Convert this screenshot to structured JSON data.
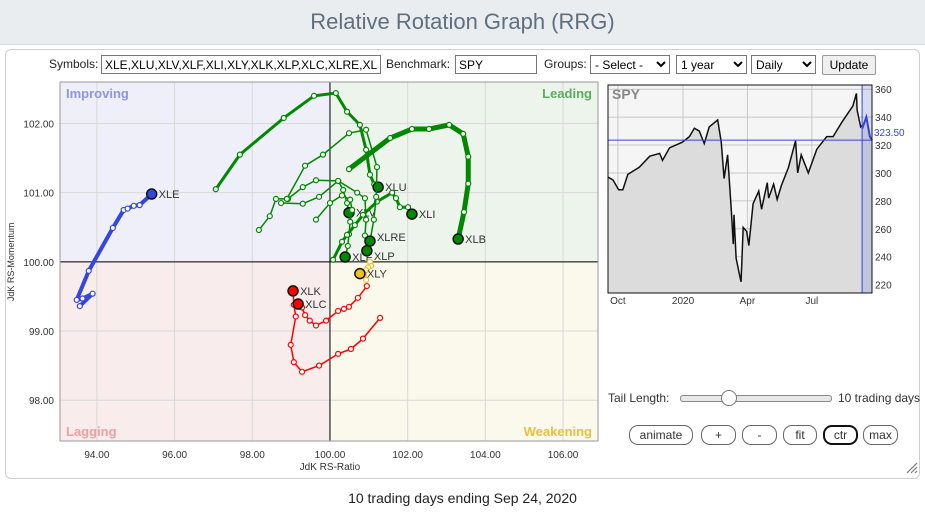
{
  "header": {
    "title": "Relative Rotation Graph (RRG)"
  },
  "toolbar": {
    "symbols_label": "Symbols:",
    "symbols_value": "XLE,XLU,XLV,XLF,XLI,XLY,XLK,XLP,XLC,XLRE,XLB",
    "benchmark_label": "Benchmark:",
    "benchmark_value": "SPY",
    "groups_label": "Groups:",
    "groups_value": "- Select -",
    "period_value": "1 year",
    "frequency_value": "Daily",
    "update_label": "Update"
  },
  "controls": {
    "tail_label": "Tail Length:",
    "tail_value_text": "10 trading days",
    "tail_days": 10,
    "buttons": [
      "animate",
      "+",
      "-",
      "fit",
      "ctr",
      "max"
    ],
    "active_button": "ctr"
  },
  "footer": {
    "text": "10 trading days ending Sep 24, 2020"
  },
  "chart_data": [
    {
      "type": "scatter",
      "xlabel": "JdK RS-Ratio",
      "ylabel": "JdK RS-Momentum",
      "xlim": [
        93.05,
        106.9
      ],
      "ylim": [
        97.41,
        102.6
      ],
      "xticks": [
        "94.00",
        "96.00",
        "98.00",
        "100.00",
        "102.00",
        "104.00",
        "106.00"
      ],
      "yticks": [
        "98.00",
        "99.00",
        "100.00",
        "101.00",
        "102.00"
      ],
      "grid": true,
      "quadrants": [
        {
          "name": "Improving",
          "bg": "#eeeff8",
          "color": "#8f95e3"
        },
        {
          "name": "Leading",
          "bg": "#edf4ec",
          "color": "#5dab5d"
        },
        {
          "name": "Lagging",
          "bg": "#f9ecec",
          "color": "#f19e9e"
        },
        {
          "name": "Weakening",
          "bg": "#fbf8ec",
          "color": "#e8c23a"
        }
      ],
      "series": [
        {
          "name": "XLE",
          "color": "#3346dd",
          "weight": 4,
          "points": [
            [
              93.56,
              99.36
            ],
            [
              93.89,
              99.54
            ],
            [
              93.63,
              99.47
            ],
            [
              93.48,
              99.45
            ],
            [
              93.79,
              99.87
            ],
            [
              94.41,
              100.49
            ],
            [
              94.69,
              100.75
            ],
            [
              94.79,
              100.77
            ],
            [
              94.95,
              100.81
            ],
            [
              95.1,
              100.82
            ],
            [
              95.41,
              100.98
            ]
          ]
        },
        {
          "name": "XLU",
          "color": "#008800",
          "weight": 3,
          "points": [
            [
              97.06,
              101.05
            ],
            [
              97.68,
              101.55
            ],
            [
              98.81,
              102.08
            ],
            [
              99.59,
              102.4
            ],
            [
              100.15,
              102.44
            ],
            [
              100.44,
              102.17
            ],
            [
              100.77,
              101.98
            ],
            [
              100.93,
              101.62
            ],
            [
              101.03,
              101.26
            ],
            [
              101.14,
              101.12
            ],
            [
              101.24,
              101.08
            ]
          ]
        },
        {
          "name": "XLV",
          "color": "#008800",
          "weight": 1.5,
          "points": [
            [
              98.17,
              100.46
            ],
            [
              98.45,
              100.66
            ],
            [
              98.61,
              100.91
            ],
            [
              98.92,
              100.91
            ],
            [
              99.3,
              101.08
            ],
            [
              99.64,
              101.18
            ],
            [
              100.21,
              101.17
            ],
            [
              100.34,
              101.04
            ],
            [
              100.44,
              100.85
            ],
            [
              100.49,
              100.71
            ]
          ]
        },
        {
          "name": "XLF",
          "color": "#008800",
          "weight": 1.5,
          "points": [
            [
              99.64,
              100.61
            ],
            [
              100.0,
              100.85
            ],
            [
              100.31,
              100.96
            ],
            [
              100.52,
              100.9
            ],
            [
              100.57,
              100.75
            ],
            [
              100.52,
              100.58
            ],
            [
              100.49,
              100.4
            ],
            [
              100.46,
              100.23
            ],
            [
              100.39,
              100.07
            ]
          ]
        },
        {
          "name": "XLI",
          "color": "#008800",
          "weight": 3,
          "points": [
            [
              100.08,
              100.03
            ],
            [
              100.31,
              100.29
            ],
            [
              100.44,
              100.39
            ],
            [
              100.64,
              100.53
            ],
            [
              100.85,
              100.68
            ],
            [
              101.21,
              100.87
            ],
            [
              101.6,
              101.0
            ],
            [
              101.7,
              100.92
            ],
            [
              101.8,
              100.79
            ],
            [
              102.01,
              100.79
            ],
            [
              102.11,
              100.69
            ]
          ]
        },
        {
          "name": "XLY",
          "color": "#f0c020",
          "weight": 1.5,
          "points": [
            [
              101.03,
              100.0
            ],
            [
              101.06,
              99.94
            ],
            [
              100.98,
              99.92
            ],
            [
              100.93,
              99.88
            ],
            [
              100.93,
              99.74
            ],
            [
              100.77,
              99.83
            ]
          ]
        },
        {
          "name": "XLK",
          "color": "#ff0000",
          "weight": 1.5,
          "points": [
            [
              101.29,
              99.19
            ],
            [
              100.85,
              98.89
            ],
            [
              100.54,
              98.74
            ],
            [
              100.21,
              98.67
            ],
            [
              99.72,
              98.5
            ],
            [
              99.28,
              98.41
            ],
            [
              99.07,
              98.55
            ],
            [
              98.99,
              98.8
            ],
            [
              99.12,
              99.21
            ],
            [
              99.07,
              99.38
            ],
            [
              99.05,
              99.58
            ]
          ]
        },
        {
          "name": "XLP",
          "color": "#008800",
          "weight": 1.5,
          "points": [
            [
              98.74,
              100.85
            ],
            [
              99.3,
              100.84
            ],
            [
              99.72,
              100.94
            ],
            [
              100.21,
              101.17
            ],
            [
              100.7,
              101.0
            ],
            [
              100.9,
              100.92
            ],
            [
              100.93,
              100.61
            ],
            [
              100.9,
              100.38
            ],
            [
              100.95,
              100.16
            ]
          ]
        },
        {
          "name": "XLC",
          "color": "#ff0000",
          "weight": 1.5,
          "points": [
            [
              100.95,
              99.65
            ],
            [
              100.72,
              99.48
            ],
            [
              100.49,
              99.35
            ],
            [
              100.36,
              99.32
            ],
            [
              100.21,
              99.29
            ],
            [
              99.9,
              99.15
            ],
            [
              99.64,
              99.08
            ],
            [
              99.48,
              99.15
            ],
            [
              99.36,
              99.23
            ],
            [
              99.28,
              99.34
            ],
            [
              99.18,
              99.39
            ]
          ]
        },
        {
          "name": "XLRE",
          "color": "#008800",
          "weight": 1.5,
          "points": [
            [
              98.89,
              100.91
            ],
            [
              99.36,
              101.39
            ],
            [
              99.82,
              101.55
            ],
            [
              100.49,
              101.86
            ],
            [
              100.93,
              101.91
            ],
            [
              101.21,
              101.37
            ],
            [
              101.19,
              100.94
            ],
            [
              101.13,
              100.61
            ],
            [
              101.03,
              100.3
            ]
          ]
        },
        {
          "name": "XLB",
          "color": "#008800",
          "weight": 5,
          "points": [
            [
              100.49,
              101.34
            ],
            [
              101.55,
              101.79
            ],
            [
              102.11,
              101.92
            ],
            [
              102.55,
              101.92
            ],
            [
              103.07,
              101.98
            ],
            [
              103.43,
              101.85
            ],
            [
              103.56,
              101.52
            ],
            [
              103.56,
              101.13
            ],
            [
              103.45,
              100.72
            ],
            [
              103.3,
              100.33
            ]
          ]
        }
      ]
    },
    {
      "type": "line",
      "title": "SPY",
      "xlim": [
        "2019-09-17",
        "2020-09-24"
      ],
      "ylim": [
        214,
        363
      ],
      "xticks": [
        [
          "2019-10-01",
          "Oct"
        ],
        [
          "2020-01-01",
          "2020"
        ],
        [
          "2020-04-01",
          "Apr"
        ],
        [
          "2020-07-01",
          "Jul"
        ]
      ],
      "yticks": [
        220,
        240,
        260,
        280,
        300,
        320,
        340,
        360
      ],
      "current_value_label": "323.50",
      "current_value": 323.5,
      "tail_start": "2020-09-10",
      "line_color": "#111111",
      "highlight_color": "#3344dd",
      "points": [
        [
          "2019-09-17",
          297
        ],
        [
          "2019-09-24",
          295
        ],
        [
          "2019-10-02",
          288
        ],
        [
          "2019-10-08",
          288
        ],
        [
          "2019-10-15",
          299
        ],
        [
          "2019-10-31",
          304
        ],
        [
          "2019-11-15",
          312
        ],
        [
          "2019-11-29",
          314
        ],
        [
          "2019-12-03",
          309
        ],
        [
          "2019-12-13",
          318
        ],
        [
          "2019-12-31",
          322
        ],
        [
          "2020-01-10",
          326
        ],
        [
          "2020-01-17",
          332
        ],
        [
          "2020-01-24",
          330
        ],
        [
          "2020-01-31",
          321
        ],
        [
          "2020-02-07",
          333
        ],
        [
          "2020-02-19",
          338
        ],
        [
          "2020-02-24",
          322
        ],
        [
          "2020-02-28",
          296
        ],
        [
          "2020-03-04",
          313
        ],
        [
          "2020-03-09",
          275
        ],
        [
          "2020-03-12",
          249
        ],
        [
          "2020-03-13",
          270
        ],
        [
          "2020-03-16",
          239
        ],
        [
          "2020-03-20",
          229
        ],
        [
          "2020-03-23",
          222
        ],
        [
          "2020-03-26",
          261
        ],
        [
          "2020-03-31",
          258
        ],
        [
          "2020-04-03",
          248
        ],
        [
          "2020-04-09",
          278
        ],
        [
          "2020-04-17",
          287
        ],
        [
          "2020-04-21",
          274
        ],
        [
          "2020-04-29",
          293
        ],
        [
          "2020-05-01",
          282
        ],
        [
          "2020-05-08",
          292
        ],
        [
          "2020-05-13",
          281
        ],
        [
          "2020-05-19",
          291
        ],
        [
          "2020-05-29",
          304
        ],
        [
          "2020-06-08",
          323
        ],
        [
          "2020-06-11",
          300
        ],
        [
          "2020-06-16",
          313
        ],
        [
          "2020-06-26",
          300
        ],
        [
          "2020-07-08",
          317
        ],
        [
          "2020-07-22",
          326
        ],
        [
          "2020-07-31",
          326
        ],
        [
          "2020-08-12",
          336
        ],
        [
          "2020-08-28",
          348
        ],
        [
          "2020-09-02",
          357
        ],
        [
          "2020-09-03",
          345
        ],
        [
          "2020-09-08",
          333
        ],
        [
          "2020-09-10",
          334
        ],
        [
          "2020-09-11",
          333
        ],
        [
          "2020-09-16",
          340
        ],
        [
          "2020-09-21",
          326
        ],
        [
          "2020-09-24",
          323.5
        ]
      ]
    }
  ]
}
